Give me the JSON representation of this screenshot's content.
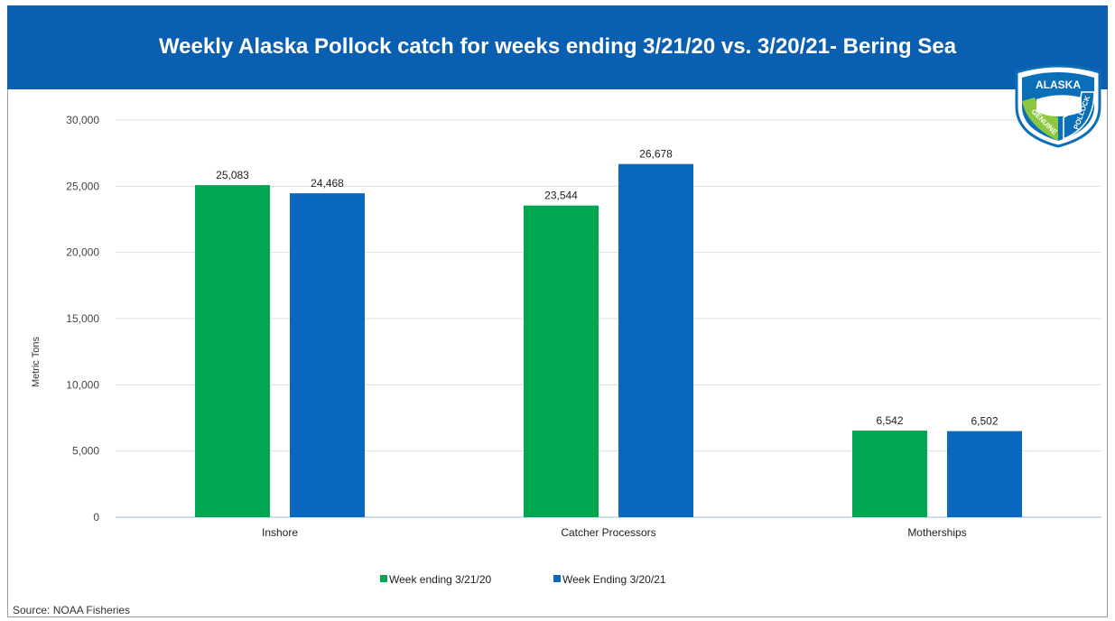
{
  "chart_data": {
    "type": "bar",
    "title": "Weekly Alaska Pollock catch for weeks ending 3/21/20 vs. 3/20/21- Bering Sea",
    "xlabel": "",
    "ylabel": "Metric Tons",
    "categories": [
      "Inshore",
      "Catcher Processors",
      "Motherships"
    ],
    "series": [
      {
        "name": "Week ending 3/21/20",
        "values": [
          25083,
          23544,
          6542
        ],
        "labels": [
          "25,083",
          "23,544",
          "6,542"
        ],
        "color": "#00a650"
      },
      {
        "name": "Week Ending 3/20/21",
        "values": [
          24468,
          26678,
          6502
        ],
        "labels": [
          "24,468",
          "26,678",
          "6,502"
        ],
        "color": "#0b68c0"
      }
    ],
    "ylim": [
      0,
      30000
    ],
    "yticks": [
      0,
      5000,
      10000,
      15000,
      20000,
      25000,
      30000
    ],
    "ytick_labels": [
      "0",
      "5,000",
      "10,000",
      "15,000",
      "20,000",
      "25,000",
      "30,000"
    ],
    "grid": true,
    "legend_position": "bottom"
  },
  "source_text": "Source: NOAA Fisheries",
  "logo": {
    "text_top": "ALASKA",
    "text_left": "GENUINE",
    "text_right": "POLLOCK",
    "colors": {
      "blue": "#0b6fb8",
      "green": "#8dc63f"
    }
  },
  "colors": {
    "banner": "#0b5fb0"
  }
}
